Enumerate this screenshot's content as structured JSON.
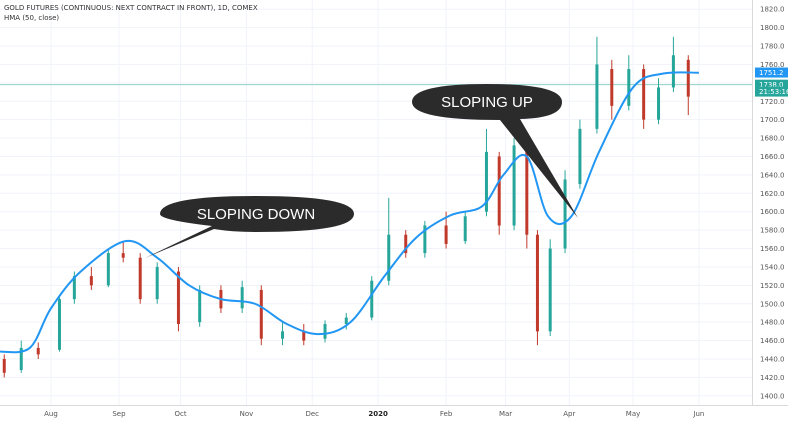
{
  "title": "GOLD FUTURES (CONTINUOUS: NEXT CONTRACT IN FRONT), 1D, COMEX",
  "indicator": "HMA (50, close)",
  "colors": {
    "up": "#26a69a",
    "down": "#c0392b",
    "hma": "#2196f3",
    "badge_hma": "#2196f3",
    "badge_price": "#26a69a",
    "callout": "#2b2b2b",
    "price_line": "#8fd0c8"
  },
  "annotations": [
    {
      "text": "SLOPING DOWN",
      "kind": "callout"
    },
    {
      "text": "SLOPING UP",
      "kind": "callout"
    }
  ],
  "chart_data": {
    "type": "candlestick",
    "xlabel": "",
    "ylabel": "",
    "ylim": [
      1390,
      1830
    ],
    "y_ticks": [
      1400,
      1420,
      1440,
      1460,
      1480,
      1500,
      1520,
      1540,
      1560,
      1580,
      1600,
      1620,
      1640,
      1660,
      1680,
      1700,
      1720,
      1740,
      1760,
      1780,
      1800,
      1820
    ],
    "y_tick_labels": [
      "1400.0",
      "1420.0",
      "1440.0",
      "1460.0",
      "1480.0",
      "1500.0",
      "1520.0",
      "1540.0",
      "1560.0",
      "1580.0",
      "1600.0",
      "1620.0",
      "1640.0",
      "1660.0",
      "1680.0",
      "1700.0",
      "1720.0",
      "1740.0",
      "1760.0",
      "1780.0",
      "1800.0",
      "1820.0"
    ],
    "x_range": [
      "2019-07-08",
      "2020-06-26"
    ],
    "x_ticks": [
      {
        "label": "Aug",
        "date": "2019-08-01"
      },
      {
        "label": "Sep",
        "date": "2019-09-02"
      },
      {
        "label": "Oct",
        "date": "2019-10-01"
      },
      {
        "label": "Nov",
        "date": "2019-11-01"
      },
      {
        "label": "Dec",
        "date": "2019-12-02"
      },
      {
        "label": "2020",
        "date": "2020-01-02",
        "bold": true
      },
      {
        "label": "Feb",
        "date": "2020-02-03"
      },
      {
        "label": "Mar",
        "date": "2020-03-02"
      },
      {
        "label": "Apr",
        "date": "2020-04-01"
      },
      {
        "label": "May",
        "date": "2020-05-01"
      },
      {
        "label": "Jun",
        "date": "2020-06-01"
      }
    ],
    "series": [
      {
        "name": "HMA (50, close)",
        "values": [
          {
            "x": "2019-07-08",
            "y": 1448
          },
          {
            "x": "2019-07-22",
            "y": 1452
          },
          {
            "x": "2019-08-01",
            "y": 1495
          },
          {
            "x": "2019-08-15",
            "y": 1535
          },
          {
            "x": "2019-09-05",
            "y": 1568
          },
          {
            "x": "2019-09-20",
            "y": 1550
          },
          {
            "x": "2019-10-05",
            "y": 1520
          },
          {
            "x": "2019-10-20",
            "y": 1505
          },
          {
            "x": "2019-11-05",
            "y": 1500
          },
          {
            "x": "2019-11-20",
            "y": 1478
          },
          {
            "x": "2019-12-05",
            "y": 1467
          },
          {
            "x": "2019-12-20",
            "y": 1480
          },
          {
            "x": "2020-01-05",
            "y": 1530
          },
          {
            "x": "2020-01-20",
            "y": 1572
          },
          {
            "x": "2020-02-05",
            "y": 1596
          },
          {
            "x": "2020-02-20",
            "y": 1606
          },
          {
            "x": "2020-03-01",
            "y": 1640
          },
          {
            "x": "2020-03-12",
            "y": 1660
          },
          {
            "x": "2020-03-22",
            "y": 1595
          },
          {
            "x": "2020-04-02",
            "y": 1595
          },
          {
            "x": "2020-04-15",
            "y": 1665
          },
          {
            "x": "2020-05-01",
            "y": 1735
          },
          {
            "x": "2020-05-15",
            "y": 1750
          },
          {
            "x": "2020-06-01",
            "y": 1751
          }
        ]
      }
    ],
    "candles": [
      {
        "x": "2019-07-10",
        "o": 1440,
        "h": 1445,
        "l": 1420,
        "c": 1425
      },
      {
        "x": "2019-07-18",
        "o": 1428,
        "h": 1460,
        "l": 1425,
        "c": 1452
      },
      {
        "x": "2019-07-26",
        "o": 1452,
        "h": 1458,
        "l": 1440,
        "c": 1445
      },
      {
        "x": "2019-08-05",
        "o": 1450,
        "h": 1510,
        "l": 1448,
        "c": 1505
      },
      {
        "x": "2019-08-12",
        "o": 1505,
        "h": 1535,
        "l": 1500,
        "c": 1530
      },
      {
        "x": "2019-08-20",
        "o": 1530,
        "h": 1540,
        "l": 1515,
        "c": 1520
      },
      {
        "x": "2019-08-28",
        "o": 1520,
        "h": 1560,
        "l": 1518,
        "c": 1555
      },
      {
        "x": "2019-09-04",
        "o": 1555,
        "h": 1568,
        "l": 1545,
        "c": 1550
      },
      {
        "x": "2019-09-12",
        "o": 1550,
        "h": 1555,
        "l": 1500,
        "c": 1505
      },
      {
        "x": "2019-09-20",
        "o": 1505,
        "h": 1545,
        "l": 1500,
        "c": 1540
      },
      {
        "x": "2019-09-30",
        "o": 1535,
        "h": 1540,
        "l": 1470,
        "c": 1478
      },
      {
        "x": "2019-10-10",
        "o": 1480,
        "h": 1520,
        "l": 1475,
        "c": 1515
      },
      {
        "x": "2019-10-20",
        "o": 1515,
        "h": 1520,
        "l": 1490,
        "c": 1495
      },
      {
        "x": "2019-10-30",
        "o": 1495,
        "h": 1525,
        "l": 1490,
        "c": 1518
      },
      {
        "x": "2019-11-08",
        "o": 1515,
        "h": 1520,
        "l": 1455,
        "c": 1462
      },
      {
        "x": "2019-11-18",
        "o": 1462,
        "h": 1480,
        "l": 1455,
        "c": 1470
      },
      {
        "x": "2019-11-28",
        "o": 1470,
        "h": 1478,
        "l": 1455,
        "c": 1460
      },
      {
        "x": "2019-12-08",
        "o": 1462,
        "h": 1482,
        "l": 1458,
        "c": 1478
      },
      {
        "x": "2019-12-18",
        "o": 1478,
        "h": 1490,
        "l": 1472,
        "c": 1485
      },
      {
        "x": "2019-12-30",
        "o": 1485,
        "h": 1530,
        "l": 1482,
        "c": 1525
      },
      {
        "x": "2020-01-07",
        "o": 1525,
        "h": 1615,
        "l": 1520,
        "c": 1575
      },
      {
        "x": "2020-01-15",
        "o": 1575,
        "h": 1580,
        "l": 1550,
        "c": 1555
      },
      {
        "x": "2020-01-24",
        "o": 1555,
        "h": 1590,
        "l": 1550,
        "c": 1585
      },
      {
        "x": "2020-02-03",
        "o": 1585,
        "h": 1600,
        "l": 1560,
        "c": 1565
      },
      {
        "x": "2020-02-12",
        "o": 1568,
        "h": 1600,
        "l": 1565,
        "c": 1595
      },
      {
        "x": "2020-02-22",
        "o": 1600,
        "h": 1690,
        "l": 1595,
        "c": 1665
      },
      {
        "x": "2020-02-28",
        "o": 1660,
        "h": 1665,
        "l": 1575,
        "c": 1585
      },
      {
        "x": "2020-03-06",
        "o": 1585,
        "h": 1680,
        "l": 1580,
        "c": 1672
      },
      {
        "x": "2020-03-12",
        "o": 1670,
        "h": 1675,
        "l": 1560,
        "c": 1575
      },
      {
        "x": "2020-03-17",
        "o": 1575,
        "h": 1580,
        "l": 1455,
        "c": 1470
      },
      {
        "x": "2020-03-23",
        "o": 1470,
        "h": 1570,
        "l": 1465,
        "c": 1560
      },
      {
        "x": "2020-03-30",
        "o": 1560,
        "h": 1645,
        "l": 1555,
        "c": 1635
      },
      {
        "x": "2020-04-06",
        "o": 1630,
        "h": 1700,
        "l": 1625,
        "c": 1690
      },
      {
        "x": "2020-04-14",
        "o": 1690,
        "h": 1790,
        "l": 1685,
        "c": 1760
      },
      {
        "x": "2020-04-21",
        "o": 1755,
        "h": 1765,
        "l": 1700,
        "c": 1715
      },
      {
        "x": "2020-04-29",
        "o": 1715,
        "h": 1770,
        "l": 1710,
        "c": 1755
      },
      {
        "x": "2020-05-06",
        "o": 1755,
        "h": 1760,
        "l": 1690,
        "c": 1700
      },
      {
        "x": "2020-05-13",
        "o": 1700,
        "h": 1745,
        "l": 1695,
        "c": 1735
      },
      {
        "x": "2020-05-20",
        "o": 1735,
        "h": 1790,
        "l": 1730,
        "c": 1770
      },
      {
        "x": "2020-05-27",
        "o": 1765,
        "h": 1770,
        "l": 1705,
        "c": 1725
      }
    ],
    "price_labels": [
      {
        "value": 1751.2,
        "text": "1751.2",
        "kind": "hma"
      },
      {
        "value": 1738.0,
        "text": "1738.0",
        "kind": "price"
      },
      {
        "value": 1730.5,
        "text": "21:53:16",
        "kind": "countdown"
      }
    ]
  }
}
